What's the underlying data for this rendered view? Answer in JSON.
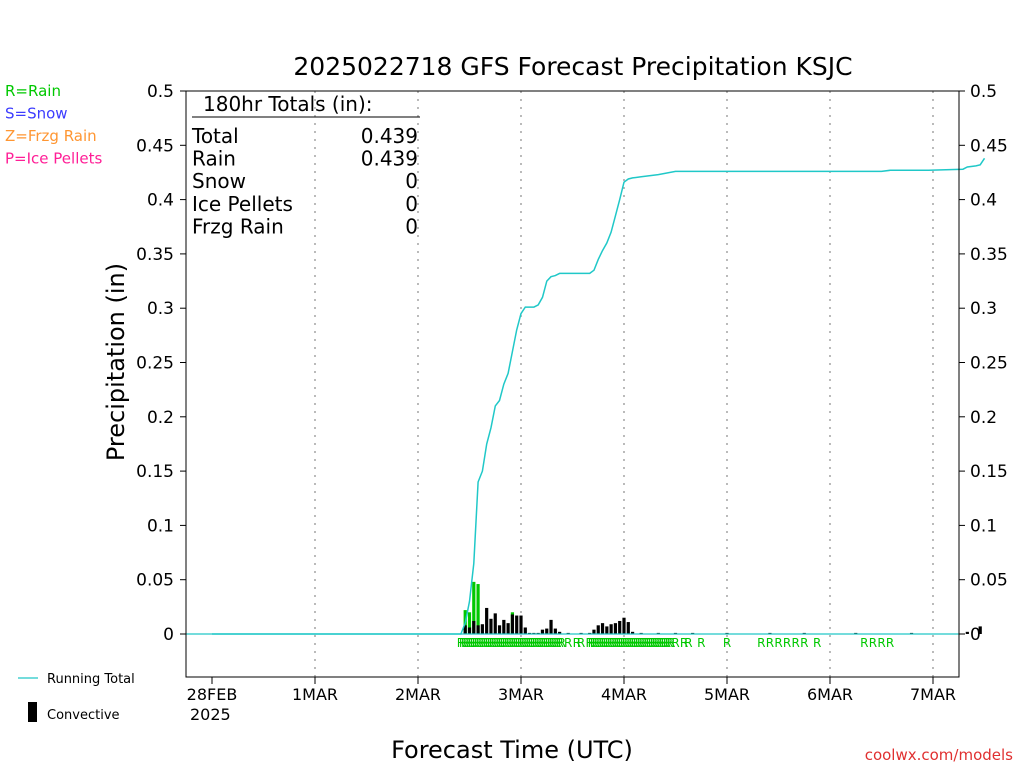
{
  "chart_data": {
    "type": "bar",
    "title": "2025022718 GFS Forecast Precipitation KSJC",
    "xlabel": "Forecast Time (UTC)",
    "ylabel": "Precipitation (in)",
    "ylim": [
      0,
      0.5
    ],
    "yticks": [
      "0",
      "0.05",
      "0.1",
      "0.15",
      "0.2",
      "0.25",
      "0.3",
      "0.35",
      "0.4",
      "0.45",
      "0.5"
    ],
    "xticks": [
      "28FEB",
      "1MAR",
      "2MAR",
      "3MAR",
      "4MAR",
      "5MAR",
      "6MAR",
      "7MAR"
    ],
    "xtick_year": "2025",
    "grid": "vertical dotted",
    "totals_box": {
      "heading": "180hr Totals (in):",
      "rows": [
        {
          "label": "Total",
          "value": "0.439"
        },
        {
          "label": "Rain",
          "value": "0.439"
        },
        {
          "label": "Snow",
          "value": "0"
        },
        {
          "label": "Ice Pellets",
          "value": "0"
        },
        {
          "label": "Frzg Rain",
          "value": "0"
        }
      ]
    },
    "ptype_legend": [
      {
        "text": "R=Rain",
        "color": "#00c800"
      },
      {
        "text": "S=Snow",
        "color": "#3c3cff"
      },
      {
        "text": "Z=Frzg Rain",
        "color": "#ff9632"
      },
      {
        "text": "P=Ice Pellets",
        "color": "#ff1e96"
      }
    ],
    "series_legend": [
      {
        "text": "Running Total",
        "color": "#20c8c8"
      },
      {
        "text": "Convective",
        "color": "#000000"
      }
    ],
    "watermark": "coolwx.com/models",
    "running_total": {
      "name": "Running Total",
      "color": "#20c8c8",
      "points": [
        [
          0,
          0
        ],
        [
          58,
          0
        ],
        [
          59,
          0.01
        ],
        [
          60,
          0.03
        ],
        [
          61,
          0.065
        ],
        [
          62,
          0.14
        ],
        [
          63,
          0.15
        ],
        [
          64,
          0.175
        ],
        [
          65,
          0.19
        ],
        [
          66,
          0.21
        ],
        [
          67,
          0.215
        ],
        [
          68,
          0.23
        ],
        [
          69,
          0.24
        ],
        [
          70,
          0.26
        ],
        [
          71,
          0.28
        ],
        [
          72,
          0.295
        ],
        [
          73,
          0.301
        ],
        [
          74,
          0.301
        ],
        [
          75,
          0.301
        ],
        [
          76,
          0.303
        ],
        [
          77,
          0.31
        ],
        [
          78,
          0.325
        ],
        [
          79,
          0.329
        ],
        [
          80,
          0.33
        ],
        [
          81,
          0.332
        ],
        [
          88,
          0.332
        ],
        [
          89,
          0.335
        ],
        [
          90,
          0.345
        ],
        [
          91,
          0.353
        ],
        [
          92,
          0.36
        ],
        [
          93,
          0.37
        ],
        [
          94,
          0.385
        ],
        [
          95,
          0.4
        ],
        [
          96,
          0.416
        ],
        [
          97,
          0.419
        ],
        [
          98,
          0.42
        ],
        [
          100,
          0.421
        ],
        [
          104,
          0.423
        ],
        [
          108,
          0.426
        ],
        [
          130,
          0.426
        ],
        [
          156,
          0.426
        ],
        [
          158,
          0.427
        ],
        [
          167,
          0.427
        ],
        [
          175,
          0.428
        ],
        [
          176,
          0.43
        ],
        [
          178,
          0.431
        ],
        [
          179,
          0.432
        ],
        [
          180,
          0.438
        ]
      ]
    },
    "bars": {
      "rain_color": "#00c800",
      "convective_color": "#000000",
      "items": [
        [
          59,
          0.022,
          0.008
        ],
        [
          60,
          0.02,
          0.006
        ],
        [
          61,
          0.048,
          0.012
        ],
        [
          62,
          0.046,
          0.008
        ],
        [
          63,
          0.009,
          0.009
        ],
        [
          64,
          0.024,
          0.024
        ],
        [
          65,
          0.014,
          0.014
        ],
        [
          66,
          0.019,
          0.019
        ],
        [
          67,
          0.008,
          0.008
        ],
        [
          68,
          0.013,
          0.013
        ],
        [
          69,
          0.01,
          0.01
        ],
        [
          70,
          0.02,
          0.018
        ],
        [
          71,
          0.017,
          0.017
        ],
        [
          72,
          0.017,
          0.017
        ],
        [
          73,
          0.006,
          0.006
        ],
        [
          74,
          0.001,
          0.001
        ],
        [
          75,
          0.001,
          0.001
        ],
        [
          76,
          0.001,
          0.001
        ],
        [
          77,
          0.004,
          0.004
        ],
        [
          78,
          0.005,
          0.005
        ],
        [
          79,
          0.013,
          0.013
        ],
        [
          80,
          0.005,
          0.005
        ],
        [
          81,
          0.002,
          0.002
        ],
        [
          83,
          0.001,
          0.001
        ],
        [
          86,
          0.001,
          0.001
        ],
        [
          88,
          0.001,
          0.001
        ],
        [
          89,
          0.004,
          0.004
        ],
        [
          90,
          0.008,
          0.008
        ],
        [
          91,
          0.01,
          0.01
        ],
        [
          92,
          0.007,
          0.007
        ],
        [
          93,
          0.009,
          0.009
        ],
        [
          94,
          0.01,
          0.01
        ],
        [
          95,
          0.012,
          0.012
        ],
        [
          96,
          0.015,
          0.015
        ],
        [
          97,
          0.011,
          0.011
        ],
        [
          98,
          0.002,
          0.002
        ],
        [
          100,
          0.001,
          0.001
        ],
        [
          104,
          0.001,
          0.001
        ],
        [
          108,
          0.001,
          0.001
        ],
        [
          112,
          0.001,
          0.001
        ],
        [
          120,
          0.001,
          0.001
        ],
        [
          130,
          0.001,
          0.001
        ],
        [
          138,
          0.001,
          0.001
        ],
        [
          150,
          0.001,
          0.001
        ],
        [
          163,
          0.001,
          0.001
        ],
        [
          176,
          0.002,
          0.002
        ],
        [
          179,
          0.007,
          0.007
        ]
      ]
    },
    "ptype_markers": {
      "letter": "R",
      "color": "#00c800",
      "hours": [
        58,
        58.5,
        59,
        59.5,
        60,
        60.5,
        61,
        61.5,
        62,
        62.5,
        63,
        63.5,
        64,
        64.5,
        65,
        65.5,
        66,
        66.5,
        67,
        67.5,
        68,
        68.5,
        69,
        69.5,
        70,
        70.5,
        71,
        71.5,
        72,
        72.5,
        73,
        73.5,
        74,
        74.5,
        75,
        75.5,
        76,
        76.5,
        77,
        77.5,
        78,
        78.5,
        79,
        79.5,
        80,
        80.5,
        81,
        81.5,
        83,
        85,
        86,
        88,
        88.5,
        89,
        89.5,
        90,
        90.5,
        91,
        91.5,
        92,
        92.5,
        93,
        93.5,
        94,
        94.5,
        95,
        95.5,
        96,
        96.5,
        97,
        97.5,
        98,
        98.5,
        99,
        99.5,
        100,
        100.5,
        101,
        101.5,
        102,
        102.5,
        103,
        103.5,
        104,
        104.5,
        105,
        105.5,
        106,
        106.5,
        107,
        108,
        110,
        111,
        114,
        120,
        128,
        130,
        132,
        134,
        136,
        138,
        141,
        152,
        154,
        156,
        158
      ]
    }
  }
}
